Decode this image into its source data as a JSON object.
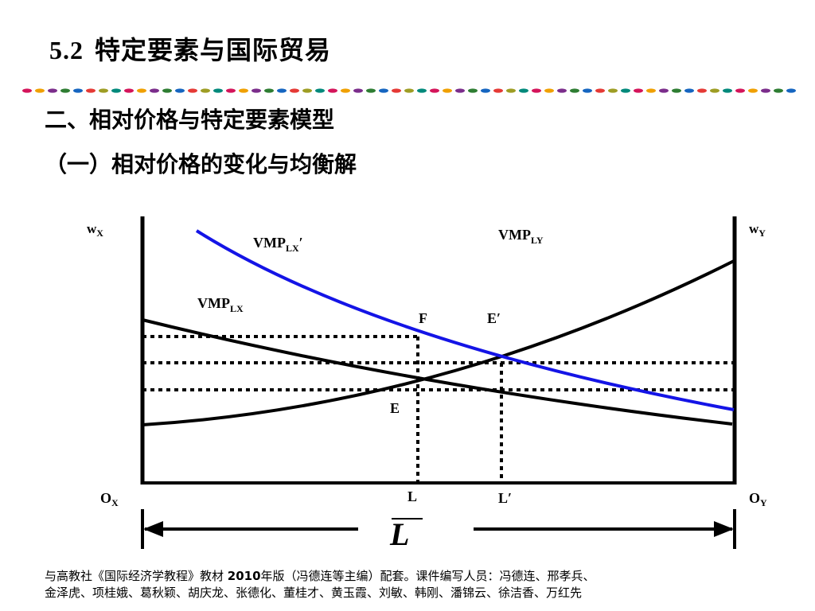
{
  "slide": {
    "title_number": "5.2",
    "title_text": "特定要素与国际贸易",
    "section_heading": "二、相对价格与特定要素模型",
    "subsection_heading": "（一）相对价格的变化与均衡解",
    "divider_colors": [
      "#d4145a",
      "#f0a000",
      "#7b2d8b",
      "#2e7d32",
      "#1565c0",
      "#e53935",
      "#9e9d24",
      "#00897b"
    ]
  },
  "diagram": {
    "axis_left_label": "w",
    "axis_left_sub": "X",
    "axis_right_label": "w",
    "axis_right_sub": "Y",
    "origin_left_label": "O",
    "origin_left_sub": "X",
    "origin_right_label": "O",
    "origin_right_sub": "Y",
    "curve_vmplx_prime_label": "VMP",
    "curve_vmplx_prime_sub": "LX",
    "curve_vmplx_prime_mark": "′",
    "curve_vmply_label": "VMP",
    "curve_vmply_sub": "LY",
    "curve_vmplx_label": "VMP",
    "curve_vmplx_sub": "LX",
    "point_f": "F",
    "point_e_prime": "E′",
    "point_e": "E",
    "point_l": "L",
    "point_l_prime": "L′",
    "total_labor_symbol": "L",
    "colors": {
      "shifted_curve": "#1414e6",
      "curves": "#000000"
    }
  },
  "footer": {
    "line1_pre": "与高教社《国际经济学教程》教材 ",
    "line1_year": "2010",
    "line1_post": "年版（冯德连等主编）配套。课件编写人员：冯德连、邢孝兵、",
    "line2": "金泽虎、项桂娥、葛秋颖、胡庆龙、张德化、董桂才、黄玉霞、刘敏、韩刚、潘锦云、徐洁香、万红先"
  }
}
